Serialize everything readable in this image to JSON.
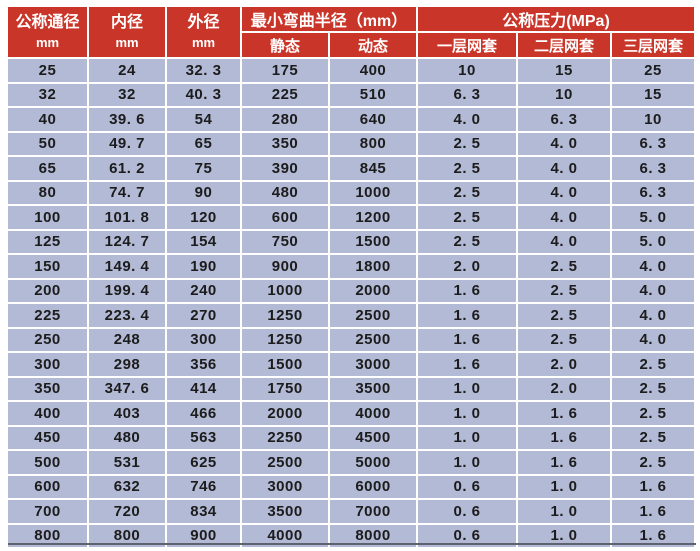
{
  "colors": {
    "header_bg": "#ca3529",
    "header_text": "#ffffff",
    "row_bg": "#b3bad5",
    "body_text": "#1c1c1c",
    "divider": "#ffffff",
    "bottom_border": "#5d626e",
    "page_bg": "#ffffff"
  },
  "table": {
    "columns": {
      "nominal_diameter": {
        "title": "公称通径",
        "unit": "mm"
      },
      "inner_diameter": {
        "title": "内径",
        "unit": "mm"
      },
      "outer_diameter": {
        "title": "外径",
        "unit": "mm"
      },
      "min_bend_radius_group": "最小弯曲半径（mm）",
      "static_label": "静态",
      "dynamic_label": "动态",
      "nominal_pressure_group": "公称压力(MPa)",
      "mesh_one_layer": "一层网套",
      "mesh_two_layer": "二层网套",
      "mesh_three_layer": "三层网套"
    },
    "rows": [
      [
        "25",
        "24",
        "32. 3",
        "175",
        "400",
        "10",
        "15",
        "25"
      ],
      [
        "32",
        "32",
        "40. 3",
        "225",
        "510",
        "6. 3",
        "10",
        "15"
      ],
      [
        "40",
        "39. 6",
        "54",
        "280",
        "640",
        "4. 0",
        "6. 3",
        "10"
      ],
      [
        "50",
        "49. 7",
        "65",
        "350",
        "800",
        "2. 5",
        "4. 0",
        "6. 3"
      ],
      [
        "65",
        "61. 2",
        "75",
        "390",
        "845",
        "2. 5",
        "4. 0",
        "6. 3"
      ],
      [
        "80",
        "74. 7",
        "90",
        "480",
        "1000",
        "2. 5",
        "4. 0",
        "6. 3"
      ],
      [
        "100",
        "101. 8",
        "120",
        "600",
        "1200",
        "2. 5",
        "4. 0",
        "5. 0"
      ],
      [
        "125",
        "124. 7",
        "154",
        "750",
        "1500",
        "2. 5",
        "4. 0",
        "5. 0"
      ],
      [
        "150",
        "149. 4",
        "190",
        "900",
        "1800",
        "2. 0",
        "2. 5",
        "4. 0"
      ],
      [
        "200",
        "199. 4",
        "240",
        "1000",
        "2000",
        "1. 6",
        "2. 5",
        "4. 0"
      ],
      [
        "225",
        "223. 4",
        "270",
        "1250",
        "2500",
        "1. 6",
        "2. 5",
        "4. 0"
      ],
      [
        "250",
        "248",
        "300",
        "1250",
        "2500",
        "1. 6",
        "2. 5",
        "4. 0"
      ],
      [
        "300",
        "298",
        "356",
        "1500",
        "3000",
        "1. 6",
        "2. 0",
        "2. 5"
      ],
      [
        "350",
        "347. 6",
        "414",
        "1750",
        "3500",
        "1. 0",
        "2. 0",
        "2. 5"
      ],
      [
        "400",
        "403",
        "466",
        "2000",
        "4000",
        "1. 0",
        "1. 6",
        "2. 5"
      ],
      [
        "450",
        "480",
        "563",
        "2250",
        "4500",
        "1. 0",
        "1. 6",
        "2. 5"
      ],
      [
        "500",
        "531",
        "625",
        "2500",
        "5000",
        "1. 0",
        "1. 6",
        "2. 5"
      ],
      [
        "600",
        "632",
        "746",
        "3000",
        "6000",
        "0. 6",
        "1. 0",
        "1. 6"
      ],
      [
        "700",
        "720",
        "834",
        "3500",
        "7000",
        "0. 6",
        "1. 0",
        "1. 6"
      ],
      [
        "800",
        "800",
        "900",
        "4000",
        "8000",
        "0. 6",
        "1. 0",
        "1. 6"
      ]
    ]
  }
}
